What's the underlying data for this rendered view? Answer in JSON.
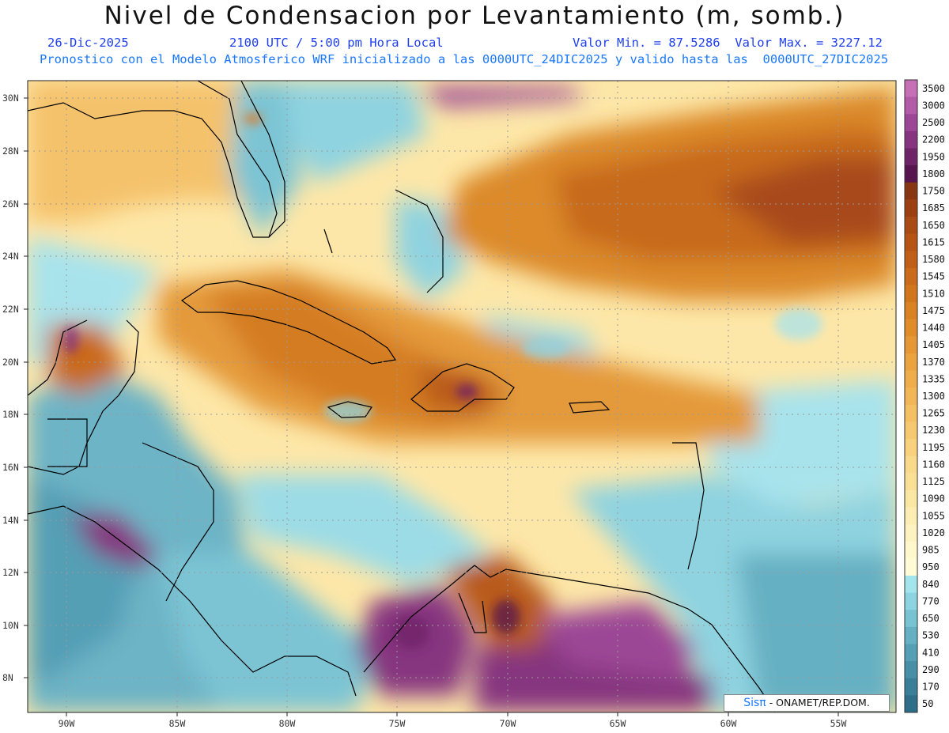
{
  "header": {
    "title": "Nivel de Condensacion por Levantamiento (m, somb.)",
    "date": "26-Dic-2025",
    "time": "2100 UTC / 5:00 pm Hora Local",
    "min_max": "Valor Min. = 87.5286  Valor Max. = 3227.12",
    "forecast": "Pronostico con el Modelo Atmosferico WRF inicializado a las 0000UTC_24DIC2025 y valido hasta las  0000UTC_27DIC2025"
  },
  "axes": {
    "lon_labels": [
      "90W",
      "85W",
      "80W",
      "75W",
      "70W",
      "65W",
      "60W",
      "55W"
    ],
    "lat_labels": [
      "30N",
      "28N",
      "26N",
      "24N",
      "22N",
      "20N",
      "18N",
      "16N",
      "14N",
      "12N",
      "10N",
      "8N"
    ]
  },
  "colorbar": {
    "labels": [
      "3500",
      "3000",
      "2500",
      "2200",
      "1950",
      "1800",
      "1750",
      "1685",
      "1650",
      "1615",
      "1580",
      "1545",
      "1510",
      "1475",
      "1440",
      "1405",
      "1370",
      "1335",
      "1300",
      "1265",
      "1230",
      "1195",
      "1160",
      "1125",
      "1090",
      "1055",
      "1020",
      "985",
      "950",
      "840",
      "770",
      "650",
      "530",
      "410",
      "290",
      "170",
      "50"
    ],
    "colors": [
      "#c46fb6",
      "#b15aa6",
      "#9c4795",
      "#86347f",
      "#702468",
      "#56154d",
      "#8a3512",
      "#9c3f12",
      "#aa4a14",
      "#b65416",
      "#c05f18",
      "#ca6a1b",
      "#d2761e",
      "#da8124",
      "#e08c2a",
      "#e59834",
      "#eaa33e",
      "#eead4a",
      "#f1b656",
      "#f4c063",
      "#f6c970",
      "#f8d17d",
      "#f9d98a",
      "#fae097",
      "#fbe7a4",
      "#fcedb2",
      "#fdf3c0",
      "#fef8cc",
      "#fffbd6",
      "#a4e4ec",
      "#8dd3e0",
      "#79c2d2",
      "#66b0c3",
      "#559fb5",
      "#478ea6",
      "#3b7e97",
      "#2f6e88"
    ]
  },
  "logo": {
    "sis": "Sis",
    "pi": "π",
    "rest": "- ONAMET/REP.DOM."
  }
}
